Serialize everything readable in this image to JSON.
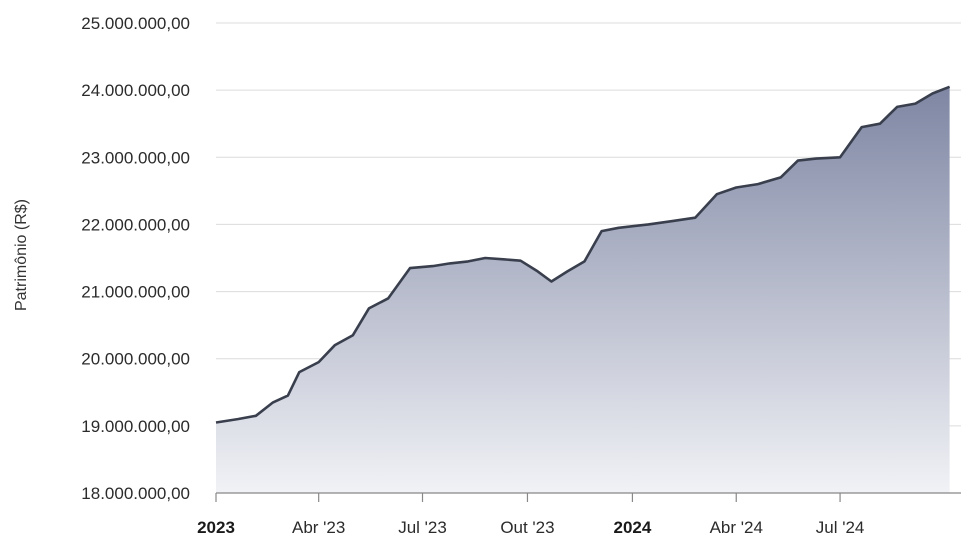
{
  "chart_data": {
    "type": "area",
    "ylabel": "Patrimônio (R$)",
    "xlabel": "",
    "ylim": [
      18000000,
      25000000
    ],
    "xlim": [
      "2023-01-01",
      "2024-10-15"
    ],
    "grid": true,
    "yticks": [
      {
        "value": 18000000,
        "label": "18.000.000,00"
      },
      {
        "value": 19000000,
        "label": "19.000.000,00"
      },
      {
        "value": 20000000,
        "label": "20.000.000,00"
      },
      {
        "value": 21000000,
        "label": "21.000.000,00"
      },
      {
        "value": 22000000,
        "label": "22.000.000,00"
      },
      {
        "value": 23000000,
        "label": "23.000.000,00"
      },
      {
        "value": 24000000,
        "label": "24.000.000,00"
      },
      {
        "value": 25000000,
        "label": "25.000.000,00"
      }
    ],
    "xticks": [
      {
        "date": "2023-01-01",
        "label": "2023",
        "bold": true
      },
      {
        "date": "2023-04-01",
        "label": "Abr '23",
        "bold": false
      },
      {
        "date": "2023-07-01",
        "label": "Jul '23",
        "bold": false
      },
      {
        "date": "2023-10-01",
        "label": "Out '23",
        "bold": false
      },
      {
        "date": "2024-01-01",
        "label": "2024",
        "bold": true
      },
      {
        "date": "2024-04-01",
        "label": "Abr '24",
        "bold": false
      },
      {
        "date": "2024-07-01",
        "label": "Jul '24",
        "bold": false
      }
    ],
    "series": [
      {
        "points": [
          {
            "x": "2023-01-01",
            "y": 19050000
          },
          {
            "x": "2023-01-20",
            "y": 19100000
          },
          {
            "x": "2023-02-05",
            "y": 19150000
          },
          {
            "x": "2023-02-20",
            "y": 19350000
          },
          {
            "x": "2023-03-05",
            "y": 19450000
          },
          {
            "x": "2023-03-15",
            "y": 19800000
          },
          {
            "x": "2023-04-01",
            "y": 19950000
          },
          {
            "x": "2023-04-15",
            "y": 20200000
          },
          {
            "x": "2023-05-01",
            "y": 20350000
          },
          {
            "x": "2023-05-15",
            "y": 20750000
          },
          {
            "x": "2023-06-01",
            "y": 20900000
          },
          {
            "x": "2023-06-20",
            "y": 21350000
          },
          {
            "x": "2023-07-10",
            "y": 21380000
          },
          {
            "x": "2023-07-25",
            "y": 21420000
          },
          {
            "x": "2023-08-10",
            "y": 21450000
          },
          {
            "x": "2023-08-25",
            "y": 21500000
          },
          {
            "x": "2023-09-10",
            "y": 21480000
          },
          {
            "x": "2023-09-25",
            "y": 21460000
          },
          {
            "x": "2023-10-10",
            "y": 21300000
          },
          {
            "x": "2023-10-22",
            "y": 21150000
          },
          {
            "x": "2023-11-05",
            "y": 21300000
          },
          {
            "x": "2023-11-20",
            "y": 21450000
          },
          {
            "x": "2023-12-05",
            "y": 21900000
          },
          {
            "x": "2023-12-20",
            "y": 21950000
          },
          {
            "x": "2024-01-15",
            "y": 22000000
          },
          {
            "x": "2024-02-05",
            "y": 22050000
          },
          {
            "x": "2024-02-25",
            "y": 22100000
          },
          {
            "x": "2024-03-15",
            "y": 22450000
          },
          {
            "x": "2024-04-01",
            "y": 22550000
          },
          {
            "x": "2024-04-20",
            "y": 22600000
          },
          {
            "x": "2024-05-10",
            "y": 22700000
          },
          {
            "x": "2024-05-25",
            "y": 22950000
          },
          {
            "x": "2024-06-10",
            "y": 22980000
          },
          {
            "x": "2024-07-01",
            "y": 23000000
          },
          {
            "x": "2024-07-20",
            "y": 23450000
          },
          {
            "x": "2024-08-05",
            "y": 23500000
          },
          {
            "x": "2024-08-20",
            "y": 23750000
          },
          {
            "x": "2024-09-05",
            "y": 23800000
          },
          {
            "x": "2024-09-20",
            "y": 23950000
          },
          {
            "x": "2024-10-05",
            "y": 24050000
          }
        ]
      }
    ],
    "colors": {
      "line": "#3a3f4e",
      "area_top": "#7e86a3",
      "area_bottom": "#f1f2f6"
    }
  }
}
